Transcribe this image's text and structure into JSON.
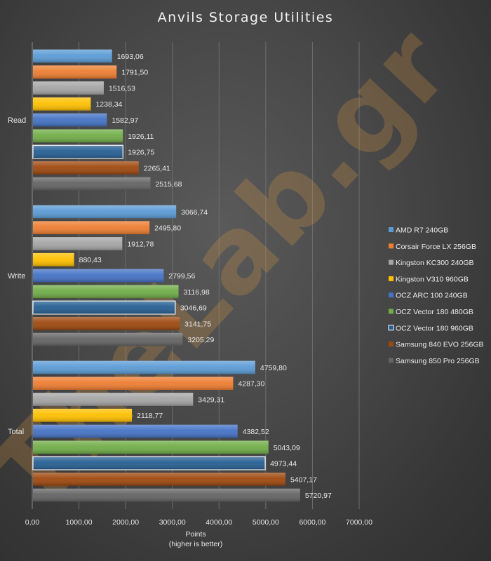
{
  "watermark": "TheLab.gr",
  "chart_data": {
    "type": "bar",
    "orientation": "horizontal",
    "title": "Anvils Storage Utilities",
    "xlabel": "Points",
    "xlabel_sub": "(higher is better)",
    "ylabel": "",
    "xlim": [
      0,
      7000
    ],
    "x_ticks": [
      "0,00",
      "1000,00",
      "2000,00",
      "3000,00",
      "4000,00",
      "5000,00",
      "6000,00",
      "7000,00"
    ],
    "grid": "vertical",
    "legend_position": "right",
    "categories": [
      "Read",
      "Write",
      "Total"
    ],
    "series": [
      {
        "name": "AMD R7 240GB",
        "color": "#5b9bd5",
        "values": [
          1693.06,
          3066.74,
          4759.8
        ],
        "labels": [
          "1693,06",
          "3066,74",
          "4759,80"
        ]
      },
      {
        "name": "Corsair Force LX 256GB",
        "color": "#ed7d31",
        "values": [
          1791.5,
          2495.8,
          4287.3
        ],
        "labels": [
          "1791,50",
          "2495,80",
          "4287,30"
        ]
      },
      {
        "name": "Kingston KC300 240GB",
        "color": "#a5a5a5",
        "values": [
          1516.53,
          1912.78,
          3429.31
        ],
        "labels": [
          "1516,53",
          "1912,78",
          "3429,31"
        ]
      },
      {
        "name": "Kingston V310 960GB",
        "color": "#ffc000",
        "values": [
          1238.34,
          880.43,
          2118.77
        ],
        "labels": [
          "1238,34",
          "880,43",
          "2118,77"
        ]
      },
      {
        "name": "OCZ ARC 100 240GB",
        "color": "#4472c4",
        "values": [
          1582.97,
          2799.56,
          4382.52
        ],
        "labels": [
          "1582,97",
          "2799,56",
          "4382,52"
        ]
      },
      {
        "name": "OCZ Vector 180 480GB",
        "color": "#70ad47",
        "values": [
          1926.11,
          3116.98,
          5043.09
        ],
        "labels": [
          "1926,11",
          "3116,98",
          "5043,09"
        ]
      },
      {
        "name": "OCZ Vector 180 960GB",
        "color": "#255e91",
        "values": [
          1926.75,
          3046.69,
          4973.44
        ],
        "labels": [
          "1926,75",
          "3046,69",
          "4973,44"
        ]
      },
      {
        "name": "Samsung 840 EVO 256GB",
        "color": "#9e480e",
        "values": [
          2265.41,
          3141.75,
          5407.17
        ],
        "labels": [
          "2265,41",
          "3141,75",
          "5407,17"
        ]
      },
      {
        "name": "Samsung 850 Pro 256GB",
        "color": "#636363",
        "values": [
          2515.68,
          3205.29,
          5720.97
        ],
        "labels": [
          "2515,68",
          "3205,29",
          "5720,97"
        ]
      }
    ]
  }
}
